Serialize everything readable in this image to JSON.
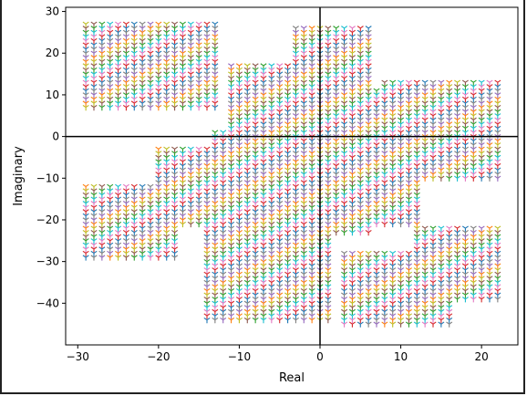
{
  "chart_data": {
    "type": "scatter",
    "title": "",
    "xlabel": "Real",
    "ylabel": "Imaginary",
    "xlim": [
      -31.5,
      24.5
    ],
    "ylim": [
      -50.0,
      31.0
    ],
    "x_ticks": [
      -30,
      -20,
      -10,
      0,
      10,
      20
    ],
    "y_ticks": [
      -40,
      -30,
      -20,
      -10,
      0,
      10,
      20,
      30
    ],
    "x_tick_labels": [
      "−30",
      "−20",
      "−10",
      "0",
      "10",
      "20"
    ],
    "y_tick_labels": [
      "−40",
      "−30",
      "−20",
      "−10",
      "0",
      "10",
      "20",
      "30"
    ],
    "reference_lines": {
      "x": 0,
      "y": 0,
      "color": "#000000"
    },
    "marker": "tri_down",
    "palette": [
      "#1f77b4",
      "#ff7f0e",
      "#2ca02c",
      "#d62728",
      "#9467bd",
      "#8c564b",
      "#e377c2",
      "#7f7f7f",
      "#bcbd22",
      "#17becf"
    ],
    "point_spacing": 1.0,
    "regions": [
      {
        "x_range": [
          -29,
          -13
        ],
        "y_range": [
          7,
          27
        ]
      },
      {
        "x_range": [
          -11,
          -1
        ],
        "y_range": [
          1,
          17
        ]
      },
      {
        "x_range": [
          -3,
          6
        ],
        "y_range": [
          2,
          26
        ]
      },
      {
        "x_range": [
          -1,
          8
        ],
        "y_range": [
          -4,
          11
        ]
      },
      {
        "x_range": [
          8,
          22
        ],
        "y_range": [
          -10,
          13
        ]
      },
      {
        "x_range": [
          -13,
          12
        ],
        "y_range": [
          -21,
          1
        ]
      },
      {
        "x_range": [
          -29,
          -18
        ],
        "y_range": [
          -29,
          -12
        ]
      },
      {
        "x_range": [
          -20,
          -13
        ],
        "y_range": [
          -21,
          -3
        ]
      },
      {
        "x_range": [
          -14,
          1
        ],
        "y_range": [
          -44,
          -20
        ]
      },
      {
        "x_range": [
          3,
          16
        ],
        "y_range": [
          -45,
          -28
        ]
      },
      {
        "x_range": [
          12,
          22
        ],
        "y_range": [
          -39,
          -22
        ]
      },
      {
        "x_range": [
          1,
          6
        ],
        "y_range": [
          -23,
          -10
        ]
      }
    ]
  }
}
